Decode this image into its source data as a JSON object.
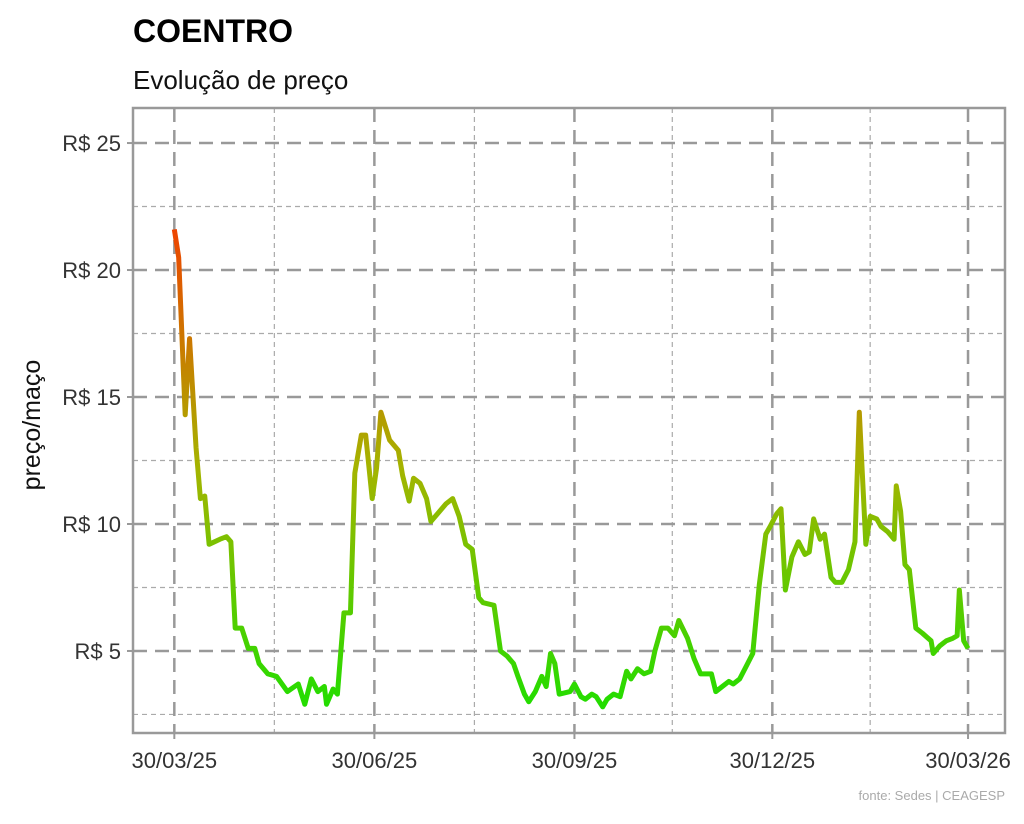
{
  "chart_data": {
    "type": "line",
    "title": "COENTRO",
    "subtitle": "Evolução de preço",
    "y_label": "preço/maço",
    "source": "fonte: Sedes | CEAGESP",
    "x": [
      "2025-03-30",
      "2025-04-01",
      "2025-04-04",
      "2025-04-06",
      "2025-04-09",
      "2025-04-11",
      "2025-04-13",
      "2025-04-15",
      "2025-04-20",
      "2025-04-23",
      "2025-04-25",
      "2025-04-27",
      "2025-04-30",
      "2025-05-03",
      "2025-05-06",
      "2025-05-08",
      "2025-05-12",
      "2025-05-16",
      "2025-05-21",
      "2025-05-26",
      "2025-05-29",
      "2025-06-01",
      "2025-06-04",
      "2025-06-07",
      "2025-06-08",
      "2025-06-11",
      "2025-06-13",
      "2025-06-16",
      "2025-06-19",
      "2025-06-21",
      "2025-06-24",
      "2025-06-26",
      "2025-06-29",
      "2025-07-01",
      "2025-07-03",
      "2025-07-07",
      "2025-07-11",
      "2025-07-13",
      "2025-07-16",
      "2025-07-18",
      "2025-07-21",
      "2025-07-24",
      "2025-07-26",
      "2025-07-29",
      "2025-08-02",
      "2025-08-05",
      "2025-08-08",
      "2025-08-11",
      "2025-08-14",
      "2025-08-17",
      "2025-08-19",
      "2025-08-24",
      "2025-08-27",
      "2025-08-30",
      "2025-09-02",
      "2025-09-04",
      "2025-09-07",
      "2025-09-09",
      "2025-09-12",
      "2025-09-15",
      "2025-09-17",
      "2025-09-19",
      "2025-09-21",
      "2025-09-23",
      "2025-09-28",
      "2025-09-30",
      "2025-10-03",
      "2025-10-05",
      "2025-10-08",
      "2025-10-10",
      "2025-10-13",
      "2025-10-15",
      "2025-10-18",
      "2025-10-21",
      "2025-10-24",
      "2025-10-26",
      "2025-10-29",
      "2025-11-01",
      "2025-11-04",
      "2025-11-06",
      "2025-11-09",
      "2025-11-12",
      "2025-11-15",
      "2025-11-17",
      "2025-11-21",
      "2025-11-24",
      "2025-11-27",
      "2025-11-29",
      "2025-12-02",
      "2025-12-04",
      "2025-12-07",
      "2025-12-10",
      "2025-12-12",
      "2025-12-15",
      "2025-12-18",
      "2025-12-21",
      "2025-12-24",
      "2025-12-27",
      "2025-12-29",
      "2026-01-01",
      "2026-01-03",
      "2026-01-05",
      "2026-01-08",
      "2026-01-11",
      "2026-01-14",
      "2026-01-16",
      "2026-01-18",
      "2026-01-21",
      "2026-01-23",
      "2026-01-26",
      "2026-01-28",
      "2026-01-31",
      "2026-02-03",
      "2026-02-06",
      "2026-02-08",
      "2026-02-11",
      "2026-02-13",
      "2026-02-16",
      "2026-02-18",
      "2026-02-21",
      "2026-02-24",
      "2026-02-25",
      "2026-02-27",
      "2026-03-01",
      "2026-03-03",
      "2026-03-06",
      "2026-03-09",
      "2026-03-13",
      "2026-03-14",
      "2026-03-17",
      "2026-03-20",
      "2026-03-23",
      "2026-03-25",
      "2026-03-26",
      "2026-03-28",
      "2026-03-30"
    ],
    "values": [
      21.6,
      20.5,
      14.3,
      17.3,
      13,
      11,
      11.1,
      9.2,
      9.4,
      9.5,
      9.3,
      5.9,
      5.9,
      5.1,
      5.1,
      4.5,
      4.1,
      4.0,
      3.4,
      3.7,
      2.9,
      3.9,
      3.4,
      3.6,
      2.9,
      3.5,
      3.3,
      6.5,
      6.5,
      12.0,
      13.5,
      13.5,
      11.0,
      12.2,
      14.4,
      13.3,
      12.9,
      11.9,
      10.9,
      11.8,
      11.6,
      11.0,
      10.1,
      10.4,
      10.8,
      11.0,
      10.3,
      9.2,
      9.0,
      7.1,
      6.9,
      6.8,
      5.0,
      4.8,
      4.5,
      4.0,
      3.3,
      3.0,
      3.4,
      4.0,
      3.6,
      4.9,
      4.5,
      3.3,
      3.4,
      3.7,
      3.2,
      3.1,
      3.3,
      3.2,
      2.8,
      3.1,
      3.3,
      3.2,
      4.2,
      3.9,
      4.3,
      4.1,
      4.2,
      5.0,
      5.9,
      5.9,
      5.6,
      6.2,
      5.5,
      4.7,
      4.1,
      4.1,
      4.1,
      3.4,
      3.6,
      3.8,
      3.7,
      3.9,
      4.4,
      4.9,
      7.6,
      9.6,
      9.9,
      10.4,
      10.6,
      7.4,
      8.7,
      9.3,
      8.8,
      8.9,
      10.2,
      9.4,
      9.6,
      7.9,
      7.7,
      7.7,
      8.2,
      9.3,
      14.4,
      9.2,
      10.3,
      10.2,
      9.9,
      9.7,
      9.4,
      11.5,
      10.5,
      8.4,
      8.2,
      5.9,
      5.7,
      5.4,
      4.9,
      5.2,
      5.4,
      5.5,
      5.6,
      7.4,
      5.4,
      5.1
    ],
    "gradient": [
      "#22dd00",
      "#a4b400",
      "#ee4400"
    ],
    "ylim": [
      1.77,
      26.38
    ],
    "yticks": [
      {
        "value": 5,
        "label": "R$ 5"
      },
      {
        "value": 10,
        "label": "R$ 10"
      },
      {
        "value": 15,
        "label": "R$ 15"
      },
      {
        "value": 20,
        "label": "R$ 20"
      },
      {
        "value": 25,
        "label": "R$ 25"
      }
    ],
    "yminor": [
      2.5,
      7.5,
      12.5,
      17.5,
      22.5
    ],
    "xlim": [
      "2025-03-11",
      "2026-04-16"
    ],
    "xticks": [
      {
        "value": "2025-03-30",
        "label": "30/03/25"
      },
      {
        "value": "2025-06-30",
        "label": "30/06/25"
      },
      {
        "value": "2025-09-30",
        "label": "30/09/25"
      },
      {
        "value": "2025-12-30",
        "label": "30/12/25"
      },
      {
        "value": "2026-03-30",
        "label": "30/03/26"
      }
    ],
    "xminor": [
      "2025-05-15",
      "2025-08-15",
      "2025-11-14",
      "2026-02-13"
    ],
    "grid": true
  }
}
